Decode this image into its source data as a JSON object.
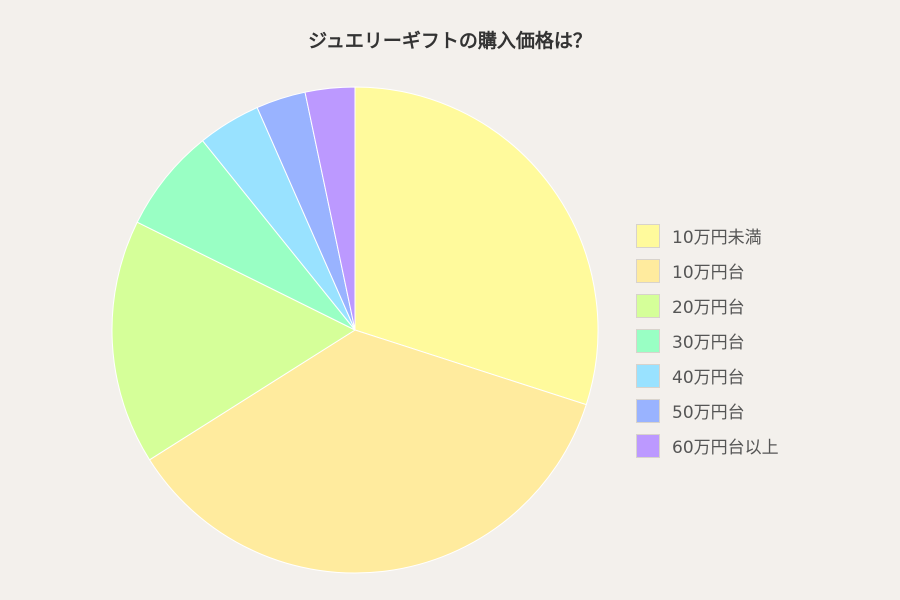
{
  "chart_data": {
    "type": "pie",
    "title": "ジュエリーギフトの購入価格は？",
    "categories": [
      "10万円未満",
      "10万円台",
      "20万円台",
      "30万円台",
      "40万円台",
      "50万円台",
      "60万円台以上"
    ],
    "values": [
      30.0,
      36.1,
      16.3,
      6.9,
      4.2,
      3.3,
      3.3
    ],
    "unit": "%",
    "start_angle": "12 o'clock",
    "direction": "clockwise",
    "legend_position": "right",
    "colors": [
      "#fffa9c",
      "#ffeb9e",
      "#d5ff99",
      "#99ffc4",
      "#99e2ff",
      "#99b3ff",
      "#bc99ff"
    ],
    "slice_border_color": "#ffffff"
  }
}
